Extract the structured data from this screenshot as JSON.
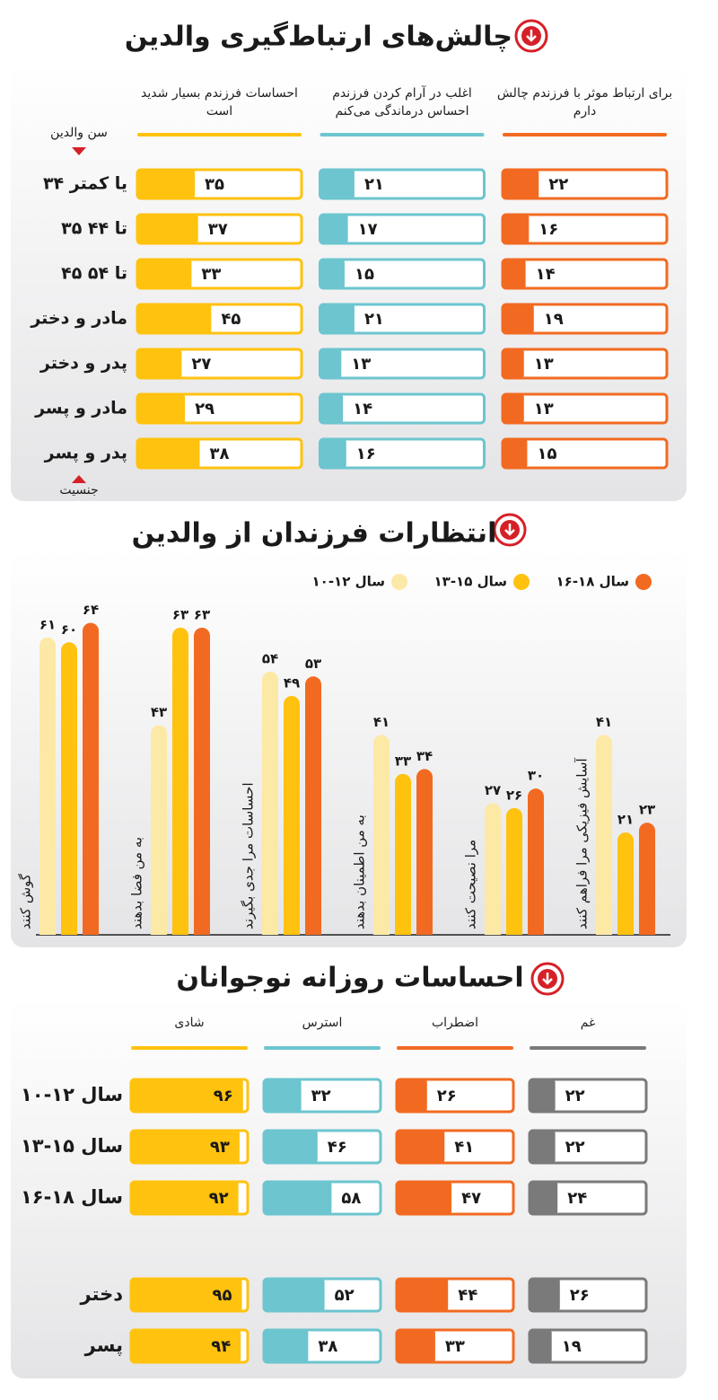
{
  "chart_data": [
    {
      "type": "progress",
      "title": "چالش‌های ارتباط‌گیری والدین",
      "annotations": [
        "سن والدین",
        "جنسیت"
      ],
      "categories": [
        "۳۴ یا کمتر",
        "۳۵ تا ۴۴",
        "۴۵ تا ۵۴",
        "مادر و دختر",
        "پدر و دختر",
        "مادر و پسر",
        "پدر و پسر"
      ],
      "xlim": [
        0,
        100
      ],
      "series": [
        {
          "name": "برای ارتباط موثر با فرزندم چالش دارم",
          "color": "#f26a21",
          "values": [
            22,
            16,
            14,
            19,
            13,
            13,
            15
          ],
          "value_labels": [
            "۲۲",
            "۱۶",
            "۱۴",
            "۱۹",
            "۱۳",
            "۱۳",
            "۱۵"
          ]
        },
        {
          "name": "اغلب در آرام کردن فرزندم احساس درماندگی می‌کنم",
          "color": "#6cc5cf",
          "values": [
            21,
            17,
            15,
            21,
            13,
            14,
            16
          ],
          "value_labels": [
            "۲۱",
            "۱۷",
            "۱۵",
            "۲۱",
            "۱۳",
            "۱۴",
            "۱۶"
          ]
        },
        {
          "name": "احساسات فرزندم بسیار شدید است",
          "color": "#ffc20e",
          "values": [
            35,
            37,
            33,
            45,
            27,
            29,
            38
          ],
          "value_labels": [
            "۳۵",
            "۳۷",
            "۳۳",
            "۴۵",
            "۲۷",
            "۲۹",
            "۳۸"
          ]
        }
      ]
    },
    {
      "type": "bar",
      "title": "انتظارات فرزندان از والدین",
      "categories": [
        "گوش کنند",
        "به من فضا بدهند",
        "احساسات مرا جدی بگیرند",
        "به من اطمینان بدهند",
        "مرا نصیحت کنند",
        "آسایش فیزیکی مرا فراهم کنند"
      ],
      "ylim": [
        0,
        70
      ],
      "series": [
        {
          "name": "۱۰-۱۲ سال",
          "color": "#fde9a6",
          "values": [
            61,
            43,
            54,
            41,
            27,
            41
          ],
          "value_labels": [
            "۶۱",
            "۴۳",
            "۵۴",
            "۴۱",
            "۲۷",
            "۴۱"
          ]
        },
        {
          "name": "۱۳-۱۵ سال",
          "color": "#ffc20e",
          "values": [
            60,
            63,
            49,
            33,
            26,
            21
          ],
          "value_labels": [
            "۶۰",
            "۶۳",
            "۴۹",
            "۳۳",
            "۲۶",
            "۲۱"
          ]
        },
        {
          "name": "۱۶-۱۸ سال",
          "color": "#f26a21",
          "values": [
            64,
            63,
            53,
            34,
            30,
            23
          ],
          "value_labels": [
            "۶۴",
            "۶۳",
            "۵۳",
            "۳۴",
            "۳۰",
            "۲۳"
          ]
        }
      ]
    },
    {
      "type": "progress",
      "title": "احساسات روزانه نوجوانان",
      "categories": [
        "۱۰-۱۲ سال",
        "۱۳-۱۵ سال",
        "۱۶-۱۸ سال",
        "دختر",
        "پسر"
      ],
      "xlim": [
        0,
        100
      ],
      "series": [
        {
          "name": "غم",
          "color": "#7a7a7a",
          "values": [
            22,
            22,
            24,
            26,
            19
          ],
          "value_labels": [
            "۲۲",
            "۲۲",
            "۲۴",
            "۲۶",
            "۱۹"
          ]
        },
        {
          "name": "اضطراب",
          "color": "#f26a21",
          "values": [
            26,
            41,
            47,
            44,
            33
          ],
          "value_labels": [
            "۲۶",
            "۴۱",
            "۴۷",
            "۴۴",
            "۳۳"
          ]
        },
        {
          "name": "استرس",
          "color": "#6cc5cf",
          "values": [
            32,
            46,
            58,
            52,
            38
          ],
          "value_labels": [
            "۳۲",
            "۴۶",
            "۵۸",
            "۵۲",
            "۳۸"
          ]
        },
        {
          "name": "شادی",
          "color": "#ffc20e",
          "values": [
            96,
            93,
            92,
            95,
            94
          ],
          "value_labels": [
            "۹۶",
            "۹۳",
            "۹۲",
            "۹۵",
            "۹۴"
          ]
        }
      ]
    }
  ]
}
